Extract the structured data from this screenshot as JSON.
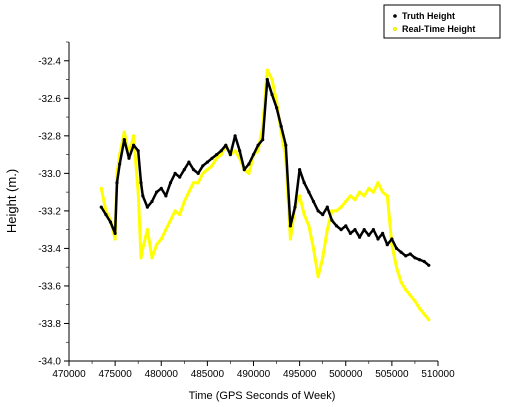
{
  "chart_data": {
    "type": "scatter",
    "xlabel": "Time (GPS Seconds of Week)",
    "ylabel": "Height (m.)",
    "xlim": [
      470000,
      510000
    ],
    "ylim": [
      -34.0,
      -32.3
    ],
    "xticks": [
      470000,
      475000,
      480000,
      485000,
      490000,
      495000,
      500000,
      505000,
      510000
    ],
    "yticks": [
      -34.0,
      -33.8,
      -33.6,
      -33.4,
      -33.2,
      -33.0,
      -32.8,
      -32.6,
      -32.4
    ],
    "xtick_labels": [
      "470000",
      "475000",
      "480000",
      "485000",
      "490000",
      "495000",
      "500000",
      "505000",
      "510000"
    ],
    "ytick_labels": [
      "-34.0",
      "-33.8",
      "-33.6",
      "-33.4",
      "-33.2",
      "-33.0",
      "-32.8",
      "-32.6",
      "-32.4"
    ],
    "grid": false,
    "legend_position": "top-right",
    "series": [
      {
        "name": "Truth Height",
        "color": "#000000",
        "x": [
          473500,
          474000,
          474500,
          475000,
          475200,
          475500,
          476000,
          476500,
          477000,
          477500,
          477800,
          478000,
          478500,
          479000,
          479500,
          480000,
          480500,
          481000,
          481500,
          482000,
          482500,
          483000,
          483500,
          484000,
          484500,
          485000,
          485500,
          486000,
          486500,
          487000,
          487500,
          488000,
          488500,
          489000,
          489500,
          490000,
          490500,
          491000,
          491500,
          492000,
          492500,
          493000,
          493500,
          494000,
          494500,
          495000,
          495500,
          496000,
          496500,
          497000,
          497500,
          498000,
          498500,
          499000,
          499500,
          500000,
          500500,
          501000,
          501500,
          502000,
          502500,
          503000,
          503500,
          504000,
          504500,
          505000,
          505500,
          506000,
          506500,
          507000,
          507500,
          508000,
          508500,
          509000
        ],
        "y": [
          -33.18,
          -33.22,
          -33.26,
          -33.32,
          -33.05,
          -32.95,
          -32.82,
          -32.92,
          -32.85,
          -32.88,
          -33.05,
          -33.12,
          -33.18,
          -33.15,
          -33.1,
          -33.08,
          -33.12,
          -33.05,
          -33.0,
          -33.02,
          -32.98,
          -32.94,
          -32.98,
          -33.0,
          -32.96,
          -32.94,
          -32.92,
          -32.9,
          -32.88,
          -32.85,
          -32.9,
          -32.8,
          -32.88,
          -32.98,
          -32.95,
          -32.9,
          -32.85,
          -32.82,
          -32.5,
          -32.58,
          -32.65,
          -32.75,
          -32.85,
          -33.28,
          -33.18,
          -32.98,
          -33.05,
          -33.1,
          -33.15,
          -33.2,
          -33.22,
          -33.18,
          -33.25,
          -33.28,
          -33.3,
          -33.28,
          -33.32,
          -33.3,
          -33.34,
          -33.3,
          -33.33,
          -33.3,
          -33.35,
          -33.32,
          -33.38,
          -33.35,
          -33.4,
          -33.42,
          -33.44,
          -33.43,
          -33.45,
          -33.46,
          -33.47,
          -33.49
        ]
      },
      {
        "name": "Real-Time Height",
        "color": "#ffff00",
        "x": [
          473500,
          474000,
          474500,
          475000,
          475200,
          475500,
          476000,
          476500,
          477000,
          477500,
          477800,
          478000,
          478500,
          479000,
          479500,
          480000,
          480500,
          481000,
          481500,
          482000,
          482500,
          483000,
          483500,
          484000,
          484500,
          485000,
          485500,
          486000,
          486500,
          487000,
          487500,
          488000,
          488500,
          489000,
          489500,
          490000,
          490500,
          491000,
          491500,
          492000,
          492500,
          493000,
          493500,
          494000,
          494500,
          495000,
          495500,
          496000,
          496500,
          497000,
          497500,
          498000,
          498500,
          499000,
          499500,
          500000,
          500500,
          501000,
          501500,
          502000,
          502500,
          503000,
          503500,
          504000,
          504500,
          505000,
          505500,
          506000,
          506500,
          507000,
          507500,
          508000,
          508500,
          509000
        ],
        "y": [
          -33.08,
          -33.2,
          -33.25,
          -33.35,
          -33.0,
          -32.9,
          -32.78,
          -32.9,
          -32.8,
          -33.1,
          -33.45,
          -33.4,
          -33.3,
          -33.45,
          -33.38,
          -33.35,
          -33.3,
          -33.25,
          -33.2,
          -33.22,
          -33.15,
          -33.1,
          -33.05,
          -33.05,
          -33.0,
          -32.98,
          -32.96,
          -32.92,
          -32.9,
          -32.85,
          -32.9,
          -32.88,
          -32.92,
          -32.98,
          -33.0,
          -32.9,
          -32.88,
          -32.75,
          -32.45,
          -32.5,
          -32.62,
          -32.78,
          -32.92,
          -33.35,
          -33.18,
          -33.12,
          -33.22,
          -33.28,
          -33.4,
          -33.55,
          -33.45,
          -33.3,
          -33.2,
          -33.2,
          -33.18,
          -33.15,
          -33.12,
          -33.14,
          -33.1,
          -33.12,
          -33.08,
          -33.1,
          -33.05,
          -33.1,
          -33.12,
          -33.38,
          -33.5,
          -33.58,
          -33.62,
          -33.65,
          -33.68,
          -33.72,
          -33.75,
          -33.78
        ]
      }
    ]
  }
}
